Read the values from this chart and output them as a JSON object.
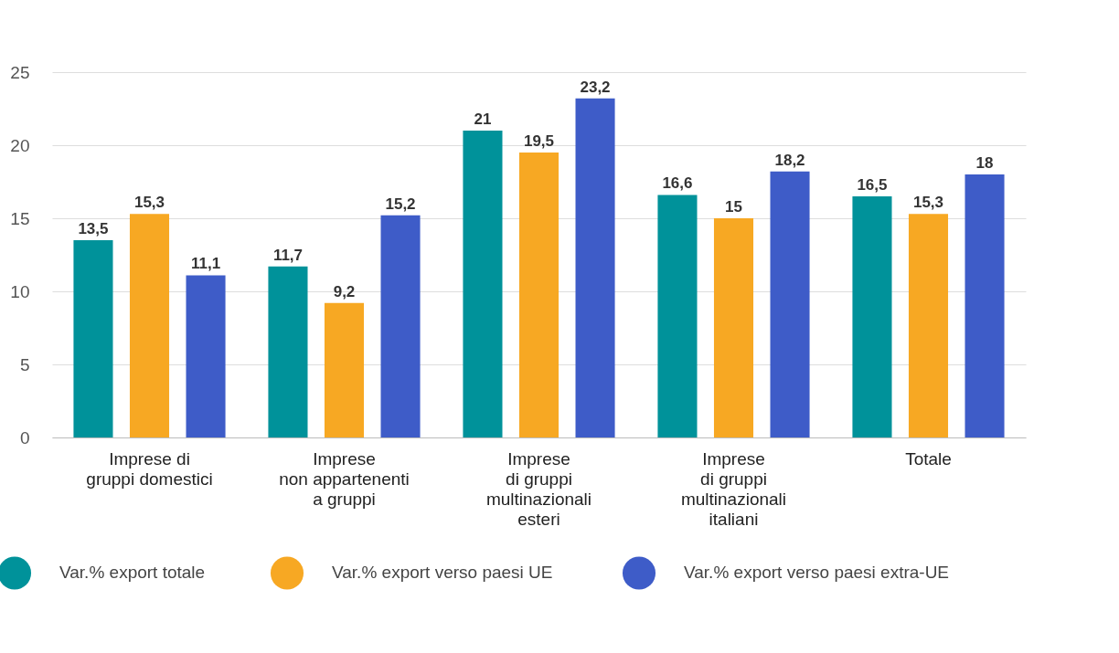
{
  "chart_data": {
    "type": "bar",
    "categories": [
      "Imprese di\ngruppi domestici",
      "Imprese\nnon appartenenti\na gruppi",
      "Imprese\ndi gruppi\nmultinazionali\nesteri",
      "Imprese\ndi gruppi\nmultinazionali\nitaliani",
      "Totale"
    ],
    "series": [
      {
        "name": "Var.% export totale",
        "color": "#00929a",
        "values": [
          13.5,
          11.7,
          21,
          16.6,
          16.5
        ]
      },
      {
        "name": "Var.% export  verso paesi UE",
        "color": "#f7a823",
        "values": [
          15.3,
          9.2,
          19.5,
          15,
          15.3
        ]
      },
      {
        "name": "Var.% export verso paesi extra-UE",
        "color": "#3e5cc8",
        "values": [
          11.1,
          15.2,
          23.2,
          18.2,
          18
        ]
      }
    ],
    "ylim": [
      0,
      25
    ],
    "yticks": [
      0,
      5,
      10,
      15,
      20,
      25
    ],
    "grid": "y",
    "legend": "bottom",
    "value_labels": [
      [
        "13,5",
        "11,7",
        "21",
        "16,6",
        "16,5"
      ],
      [
        "15,3",
        "9,2",
        "19,5",
        "15",
        "15,3"
      ],
      [
        "11,1",
        "15,2",
        "23,2",
        "18,2",
        "18"
      ]
    ]
  }
}
